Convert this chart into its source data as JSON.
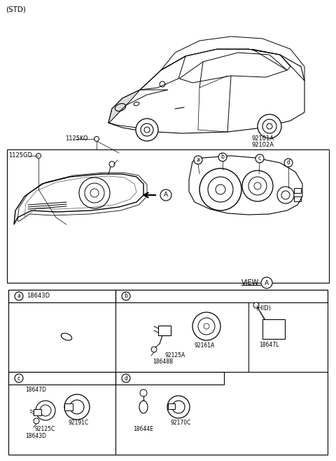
{
  "background_color": "#ffffff",
  "labels": {
    "std": "(STD)",
    "1125KO": "1125KO",
    "92101A": "92101A",
    "92102A": "92102A",
    "1125GD": "1125GD",
    "view_a": "VIEW",
    "18643D_top": "18643D",
    "18648B": "18648B",
    "92125A": "92125A",
    "92161A": "92161A",
    "HID": "(HID)",
    "18647L": "18647L",
    "18647D": "18647D",
    "92125C": "92125C",
    "92191C": "92191C",
    "18643D_bot": "18643D",
    "18644E": "18644E",
    "92170C": "92170C"
  }
}
